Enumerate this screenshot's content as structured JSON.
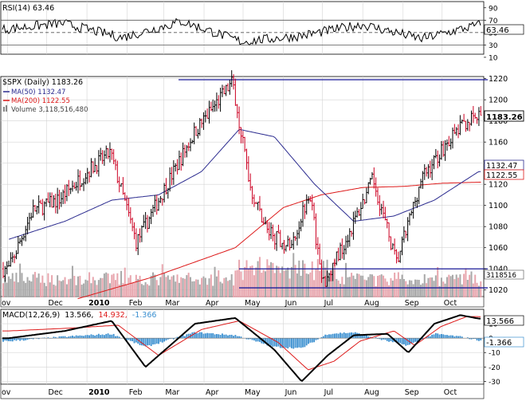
{
  "colors": {
    "price_up": "#000000",
    "price_down": "#cc0022",
    "ma50": "#2b2b8f",
    "ma200": "#dd1a1a",
    "vol_up": "#a8a8a8",
    "vol_down": "#e8a6ae",
    "hline": "#1c1c9a",
    "macd": "#000000",
    "signal": "#dd1a1a",
    "hist": "#3a8fd0",
    "grid": "#d4d4d4",
    "rsi_line": "#000000"
  },
  "header": {
    "rsi_label": "RSI(14) 63.46",
    "price_label": "$SPX (Daily) 1183.26",
    "ma50_label": "MA(50) 1132.47",
    "ma200_label": "MA(200) 1122.55",
    "volume_label": "Volume 3,118,516,480",
    "macd_label_name": "MACD(12,26,9)",
    "macd_label_v1": "13.566,",
    "macd_label_v2": "14.932,",
    "macd_label_v3": "-1.366"
  },
  "chart_data": [
    {
      "type": "line",
      "title": "RSI(14) 63.46",
      "ylim": [
        15,
        100
      ],
      "y_ticks": [
        "90",
        "70",
        "50",
        "30",
        "10"
      ],
      "reference_lines": [
        70,
        50,
        30
      ],
      "current_value": "63.46",
      "x": [
        "Nov 2009",
        "Jan 2010",
        "Feb",
        "Apr",
        "Jun",
        "Jul",
        "Aug",
        "Sep",
        "Oct"
      ],
      "values": [
        55,
        65,
        42,
        68,
        35,
        45,
        63,
        40,
        63.46
      ]
    },
    {
      "type": "line",
      "title": "$SPX (Daily) 1183.26",
      "ylim": [
        1013,
        1222
      ],
      "y_ticks": [
        "1220",
        "1200",
        "1180",
        "1160",
        "1140",
        "1120",
        "1100",
        "1080",
        "1060",
        "1040",
        "1020"
      ],
      "x_ticks": [
        "ov",
        "Dec",
        "2010",
        "Feb",
        "Mar",
        "Apr",
        "May",
        "Jun",
        "Jul",
        "Aug",
        "Sep",
        "Oct"
      ],
      "horizontal_levels": [
        1219,
        1040,
        1022
      ],
      "last_value_tag": "1183.26",
      "ma50_tag": "1132.47",
      "ma200_tag": "1122.55",
      "volume_tag": "3118516",
      "series": [
        {
          "name": "$SPX (Daily)",
          "x": [
            "2009-11-02",
            "2009-11-20",
            "2009-12-10",
            "2010-01-04",
            "2010-01-19",
            "2010-02-08",
            "2010-02-25",
            "2010-03-25",
            "2010-04-23",
            "2010-05-07",
            "2010-05-20",
            "2010-06-07",
            "2010-06-21",
            "2010-07-01",
            "2010-07-20",
            "2010-08-09",
            "2010-08-27",
            "2010-09-15",
            "2010-10-05",
            "2010-10-20",
            "2010-10-29"
          ],
          "values": [
            1040,
            1095,
            1105,
            1135,
            1150,
            1065,
            1105,
            1170,
            1217,
            1115,
            1075,
            1060,
            1115,
            1025,
            1070,
            1125,
            1045,
            1125,
            1160,
            1180,
            1183
          ]
        },
        {
          "name": "MA(50)",
          "x": [
            "2009-11-02",
            "2009-12-15",
            "2010-01-20",
            "2010-02-25",
            "2010-03-30",
            "2010-04-28",
            "2010-05-25",
            "2010-06-25",
            "2010-07-25",
            "2010-08-25",
            "2010-09-25",
            "2010-10-29"
          ],
          "values": [
            1068,
            1085,
            1105,
            1110,
            1132,
            1172,
            1165,
            1120,
            1085,
            1090,
            1105,
            1132
          ]
        },
        {
          "name": "MA(200)",
          "x": [
            "2009-12-20",
            "2010-02-20",
            "2010-04-25",
            "2010-06-01",
            "2010-06-30",
            "2010-08-01",
            "2010-09-01",
            "2010-10-01",
            "2010-10-29"
          ],
          "values": [
            1010,
            1032,
            1060,
            1098,
            1110,
            1117,
            1118,
            1121,
            1122
          ]
        }
      ]
    },
    {
      "type": "line",
      "title": "MACD(12,26,9) 13.566, 14.932, -1.366",
      "ylim": [
        -32,
        20
      ],
      "y_ticks": [
        "10",
        "0",
        "-10",
        "-20",
        "-30"
      ],
      "x_ticks": [
        "ov",
        "Dec",
        "2010",
        "Feb",
        "Mar",
        "Apr",
        "May",
        "Jun",
        "Jul",
        "Aug",
        "Sep",
        "Oct"
      ],
      "value_tags": [
        "13.566",
        "-1.366"
      ],
      "series": [
        {
          "name": "MACD",
          "x": [
            "2009-11-02",
            "2009-12-15",
            "2010-01-20",
            "2010-02-15",
            "2010-03-25",
            "2010-04-25",
            "2010-05-25",
            "2010-06-15",
            "2010-07-05",
            "2010-07-25",
            "2010-08-20",
            "2010-09-05",
            "2010-09-25",
            "2010-10-15",
            "2010-10-29"
          ],
          "values": [
            0,
            5,
            12,
            -20,
            10,
            14,
            -8,
            -30,
            -12,
            2,
            3,
            -10,
            10,
            16,
            13.566
          ]
        },
        {
          "name": "Signal",
          "x": [
            "2009-11-02",
            "2009-12-20",
            "2010-01-25",
            "2010-02-25",
            "2010-03-30",
            "2010-04-28",
            "2010-05-28",
            "2010-06-20",
            "2010-07-10",
            "2010-07-30",
            "2010-08-25",
            "2010-09-10",
            "2010-09-30",
            "2010-10-20",
            "2010-10-29"
          ],
          "values": [
            5,
            7,
            9,
            -12,
            6,
            12,
            -3,
            -22,
            -16,
            -2,
            5,
            -5,
            8,
            15,
            14.932
          ]
        },
        {
          "name": "Histogram",
          "x": [
            "2009-11-02",
            "2009-12-15",
            "2010-01-20",
            "2010-02-15",
            "2010-03-25",
            "2010-04-25",
            "2010-05-25",
            "2010-06-15",
            "2010-07-05",
            "2010-07-25",
            "2010-08-20",
            "2010-09-05",
            "2010-09-25",
            "2010-10-15",
            "2010-10-29"
          ],
          "values": [
            -2,
            1,
            3,
            -6,
            4,
            2,
            -6,
            -7,
            3,
            4,
            -2,
            -5,
            3,
            1,
            -1.366
          ]
        }
      ]
    }
  ]
}
